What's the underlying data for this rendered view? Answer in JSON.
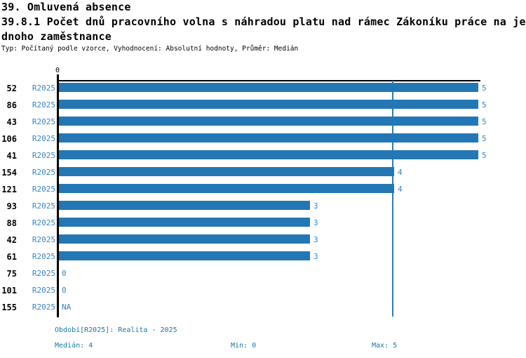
{
  "title": {
    "line1": "39. Omluvená absence",
    "line2": "39.8.1 Počet dnů pracovního volna s náhradou platu nad rámec Zákoníku práce na je",
    "line3": "dnoho zaměstnance"
  },
  "subtitle": "Typ: Počítaný podle vzorce, Vyhodnocení: Absolutní hodnoty, Průměr: Medián",
  "axis": {
    "origin_label": "0"
  },
  "rows": [
    {
      "id": "52",
      "period": "R2025",
      "value": 5,
      "label": "5"
    },
    {
      "id": "86",
      "period": "R2025",
      "value": 5,
      "label": "5"
    },
    {
      "id": "43",
      "period": "R2025",
      "value": 5,
      "label": "5"
    },
    {
      "id": "106",
      "period": "R2025",
      "value": 5,
      "label": "5"
    },
    {
      "id": "41",
      "period": "R2025",
      "value": 5,
      "label": "5"
    },
    {
      "id": "154",
      "period": "R2025",
      "value": 4,
      "label": "4"
    },
    {
      "id": "121",
      "period": "R2025",
      "value": 4,
      "label": "4"
    },
    {
      "id": "93",
      "period": "R2025",
      "value": 3,
      "label": "3"
    },
    {
      "id": "88",
      "period": "R2025",
      "value": 3,
      "label": "3"
    },
    {
      "id": "42",
      "period": "R2025",
      "value": 3,
      "label": "3"
    },
    {
      "id": "61",
      "period": "R2025",
      "value": 3,
      "label": "3"
    },
    {
      "id": "75",
      "period": "R2025",
      "value": 0,
      "label": "0"
    },
    {
      "id": "101",
      "period": "R2025",
      "value": 0,
      "label": "0"
    },
    {
      "id": "155",
      "period": "R2025",
      "value": null,
      "label": "NA"
    }
  ],
  "footer": {
    "period_info": "Období[R2025]: Realita - 2025",
    "median": "Medián: 4",
    "min": "Min: 0",
    "max": "Max: 5"
  },
  "colors": {
    "bar": "#2377b4",
    "value_label": "#3784c4",
    "period_label": "#3784c4",
    "median_line": "#2e7cb5",
    "legend_text": "#1878a0",
    "axis": "#000000"
  },
  "chart_data": {
    "type": "bar",
    "orientation": "horizontal",
    "title": "39.8.1 Počet dnů pracovního volna s náhradou platu nad rámec Zákoníku práce na jednoho zaměstnance",
    "subtitle": "Typ: Počítaný podle vzorce, Vyhodnocení: Absolutní hodnoty, Průměr: Medián",
    "categories": [
      "52",
      "86",
      "43",
      "106",
      "41",
      "154",
      "121",
      "93",
      "88",
      "42",
      "61",
      "75",
      "101",
      "155"
    ],
    "series": [
      {
        "name": "R2025",
        "values": [
          5,
          5,
          5,
          5,
          5,
          4,
          4,
          3,
          3,
          3,
          3,
          0,
          0,
          null
        ]
      }
    ],
    "value_labels": [
      "5",
      "5",
      "5",
      "5",
      "5",
      "4",
      "4",
      "3",
      "3",
      "3",
      "3",
      "0",
      "0",
      "NA"
    ],
    "xlim": [
      0,
      5
    ],
    "reference_lines": [
      {
        "name": "median",
        "value": 4
      }
    ],
    "stats": {
      "median": 4,
      "min": 0,
      "max": 5
    },
    "period": "Realita - 2025",
    "grid": false,
    "legend_position": "bottom"
  }
}
